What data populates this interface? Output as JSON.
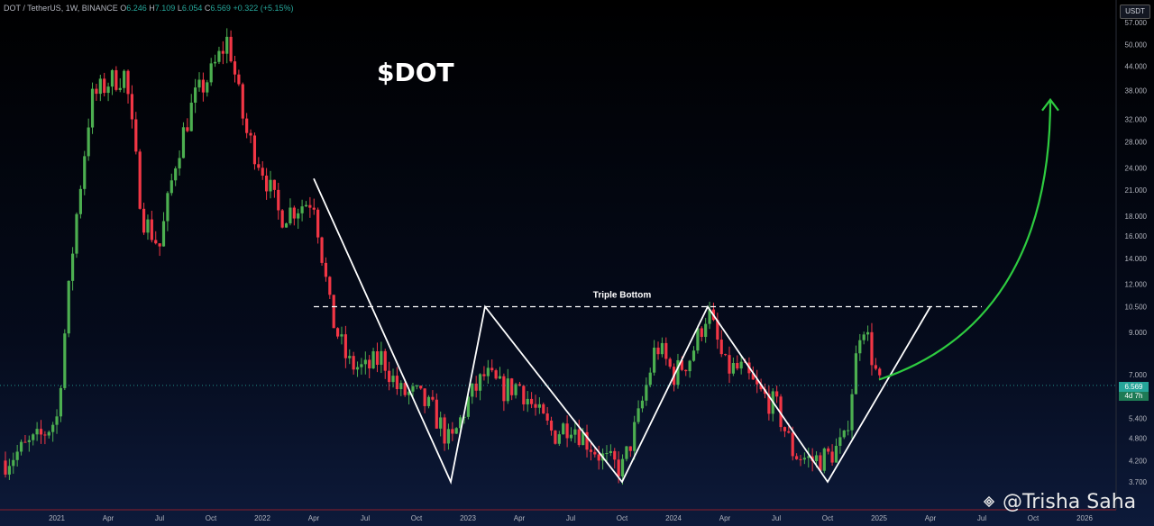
{
  "header": {
    "symbol": "DOT / TetherUS, 1W, BINANCE",
    "o_label": "O",
    "o_value": "6.246",
    "h_label": "H",
    "h_value": "7.109",
    "l_label": "L",
    "l_value": "6.054",
    "c_label": "C",
    "c_value": "6.569",
    "change": "+0.322 (+5.15%)"
  },
  "currency": "USDT",
  "title": "$DOT",
  "watermark": "@Trisha Saha",
  "last_price": "6.569",
  "countdown": "4d 7h",
  "colors": {
    "up": "#4caf50",
    "down": "#f23645",
    "pattern": "#ffffff",
    "arrow": "#2ecc40",
    "price_line": "#26a69a"
  },
  "chart_data": {
    "type": "candlestick",
    "interval": "1W",
    "yscale": "log",
    "ylim": [
      3.4,
      60
    ],
    "xlim": [
      "2020-10",
      "2026-01"
    ],
    "x_ticks": [
      "2021",
      "Apr",
      "Jul",
      "Oct",
      "2022",
      "Apr",
      "Jul",
      "Oct",
      "2023",
      "Apr",
      "Jul",
      "Oct",
      "2024",
      "Apr",
      "Jul",
      "Oct",
      "2025",
      "Apr",
      "Jul",
      "Oct",
      "2026"
    ],
    "y_ticks": [
      "57.000",
      "50.000",
      "44.000",
      "38.000",
      "32.000",
      "28.000",
      "24.000",
      "21.000",
      "18.000",
      "16.000",
      "14.000",
      "12.000",
      "10.500",
      "9.000",
      "7.000",
      "5.400",
      "4.800",
      "4.200",
      "3.700"
    ],
    "approx_path": [
      [
        "2020-10",
        4.2
      ],
      [
        "2020-12",
        4.8
      ],
      [
        "2021-01",
        5.4
      ],
      [
        "2021-02",
        16
      ],
      [
        "2021-03",
        36
      ],
      [
        "2021-04",
        40
      ],
      [
        "2021-05",
        42
      ],
      [
        "2021-06",
        18
      ],
      [
        "2021-07",
        15
      ],
      [
        "2021-08",
        26
      ],
      [
        "2021-09",
        36
      ],
      [
        "2021-10",
        42
      ],
      [
        "2021-11",
        52
      ],
      [
        "2021-12",
        30
      ],
      [
        "2022-01",
        24
      ],
      [
        "2022-02",
        18
      ],
      [
        "2022-03",
        19
      ],
      [
        "2022-04",
        20
      ],
      [
        "2022-05",
        10
      ],
      [
        "2022-06",
        7.5
      ],
      [
        "2022-07",
        7.2
      ],
      [
        "2022-08",
        7.8
      ],
      [
        "2022-09",
        6.3
      ],
      [
        "2022-10",
        6.2
      ],
      [
        "2022-11",
        5.6
      ],
      [
        "2022-12",
        4.6
      ],
      [
        "2023-01",
        6
      ],
      [
        "2023-02",
        7
      ],
      [
        "2023-03",
        6.4
      ],
      [
        "2023-04",
        6.6
      ],
      [
        "2023-05",
        5.6
      ],
      [
        "2023-06",
        4.9
      ],
      [
        "2023-07",
        5.3
      ],
      [
        "2023-08",
        4.7
      ],
      [
        "2023-09",
        4.2
      ],
      [
        "2023-10",
        4.0
      ],
      [
        "2023-11",
        5.5
      ],
      [
        "2023-12",
        8.4
      ],
      [
        "2024-01",
        7.0
      ],
      [
        "2024-02",
        7.8
      ],
      [
        "2024-03",
        10.3
      ],
      [
        "2024-04",
        7.3
      ],
      [
        "2024-05",
        7.2
      ],
      [
        "2024-06",
        6.3
      ],
      [
        "2024-07",
        5.8
      ],
      [
        "2024-08",
        4.4
      ],
      [
        "2024-09",
        4.2
      ],
      [
        "2024-10",
        4.3
      ],
      [
        "2024-11",
        4.7
      ],
      [
        "2024-12",
        10.0
      ],
      [
        "2025-01",
        6.569
      ]
    ],
    "triple_bottom": {
      "label": "Triple Bottom",
      "neckline": 10.5,
      "zigzag": [
        [
          "2022-04",
          22.5
        ],
        [
          "2022-12",
          3.7
        ],
        [
          "2023-02",
          10.5
        ],
        [
          "2023-10",
          3.7
        ],
        [
          "2024-03",
          10.5
        ],
        [
          "2024-10",
          3.7
        ],
        [
          "2025-04",
          10.5
        ]
      ],
      "neckline_from": "2022-04",
      "neckline_to": "2025-07"
    },
    "projection_arrow": {
      "from": [
        "2025-01",
        6.8
      ],
      "to": [
        "2025-11",
        36
      ]
    }
  }
}
